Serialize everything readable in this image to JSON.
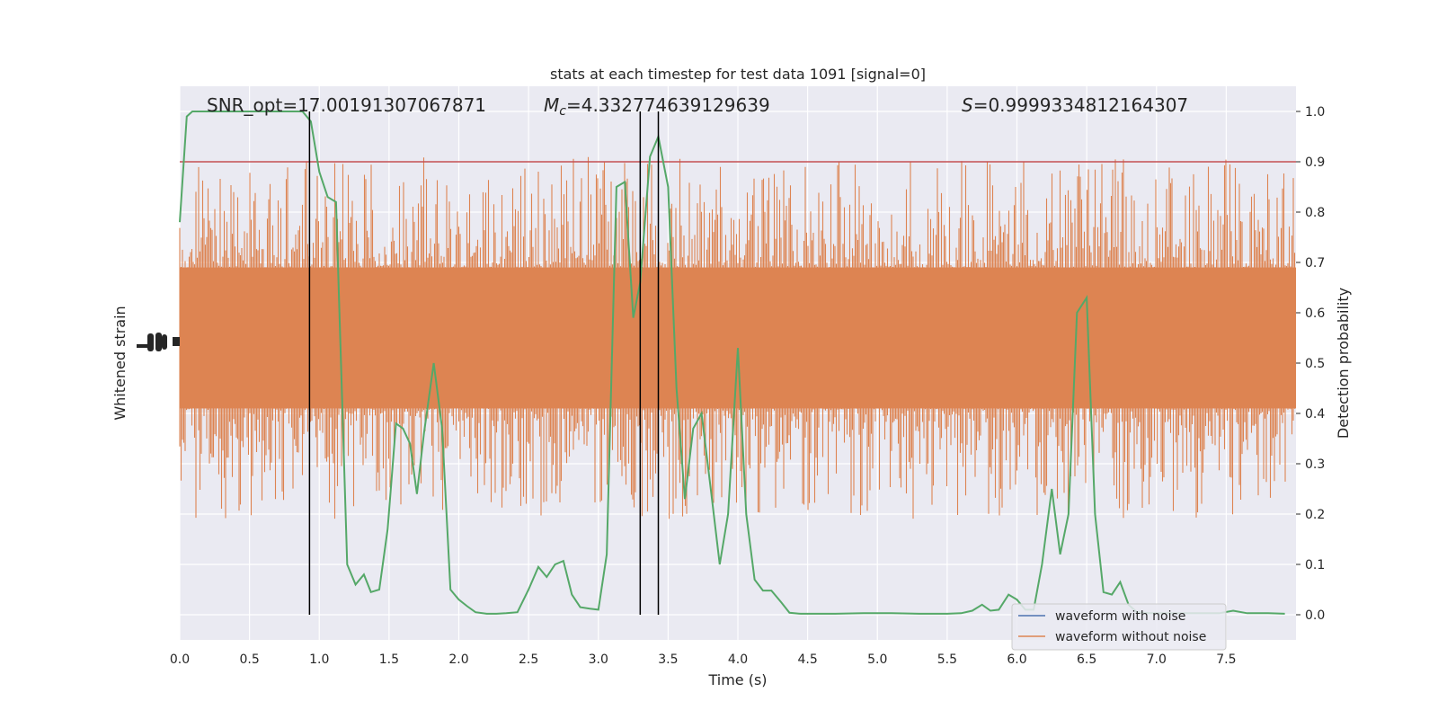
{
  "chart_data": {
    "type": "line",
    "title": "stats at each timestep for test data 1091 [signal=0]",
    "xlabel": "Time (s)",
    "ylabel_left": "Whitened strain",
    "ylabel_right": "Detection probability",
    "xlim": [
      0,
      8
    ],
    "ylim_right": [
      -0.05,
      1.05
    ],
    "x_ticks": [
      "0.0",
      "0.5",
      "1.0",
      "1.5",
      "2.0",
      "2.5",
      "3.0",
      "3.5",
      "4.0",
      "4.5",
      "5.0",
      "5.5",
      "6.0",
      "6.5",
      "7.0",
      "7.5"
    ],
    "x_tick_values": [
      0,
      0.5,
      1,
      1.5,
      2,
      2.5,
      3,
      3.5,
      4,
      4.5,
      5,
      5.5,
      6,
      6.5,
      7,
      7.5
    ],
    "y_ticks_right": [
      "0.0",
      "0.1",
      "0.2",
      "0.3",
      "0.4",
      "0.5",
      "0.6",
      "0.7",
      "0.8",
      "0.9",
      "1.0"
    ],
    "y_tick_values_right": [
      0,
      0.1,
      0.2,
      0.3,
      0.4,
      0.5,
      0.6,
      0.7,
      0.8,
      0.9,
      1.0
    ],
    "grid": true,
    "legend_position": "lower-right",
    "annotations": {
      "snr_text": "SNR_opt=17.00191307067871",
      "mc_symbol": "M",
      "mc_sub": "c",
      "mc_value": "=4.332774639129639",
      "s_symbol": "S",
      "s_value": "=0.9999334812164307"
    },
    "series": [
      {
        "name": "waveform with noise",
        "color": "#4c72b0"
      },
      {
        "name": "waveform without noise",
        "color": "#dd8452"
      },
      {
        "color": "#55a868",
        "x": [
          0.0,
          0.05,
          0.09,
          0.16,
          0.24,
          0.32,
          0.4,
          0.48,
          0.56,
          0.64,
          0.72,
          0.8,
          0.88,
          0.94,
          1.0,
          1.06,
          1.12,
          1.2,
          1.26,
          1.32,
          1.37,
          1.43,
          1.49,
          1.55,
          1.6,
          1.65,
          1.7,
          1.75,
          1.82,
          1.88,
          1.94,
          2.0,
          2.06,
          2.12,
          2.2,
          2.27,
          2.34,
          2.42,
          2.5,
          2.57,
          2.63,
          2.69,
          2.75,
          2.81,
          2.87,
          2.94,
          3.0,
          3.06,
          3.13,
          3.19,
          3.25,
          3.3,
          3.37,
          3.43,
          3.5,
          3.56,
          3.62,
          3.68,
          3.74,
          3.81,
          3.87,
          3.93,
          4.0,
          4.06,
          4.12,
          4.18,
          4.24,
          4.31,
          4.37,
          4.45,
          4.55,
          4.7,
          4.9,
          5.1,
          5.3,
          5.5,
          5.6,
          5.68,
          5.75,
          5.81,
          5.87,
          5.94,
          6.0,
          6.06,
          6.12,
          6.18,
          6.25,
          6.31,
          6.37,
          6.43,
          6.5,
          6.56,
          6.62,
          6.68,
          6.74,
          6.8,
          6.86,
          6.95,
          7.1,
          7.3,
          7.45,
          7.55,
          7.65,
          7.8,
          7.92
        ],
        "y": [
          0.78,
          0.99,
          1.0,
          1.0,
          1.0,
          1.0,
          1.0,
          1.0,
          1.0,
          1.0,
          1.0,
          1.0,
          1.0,
          0.98,
          0.88,
          0.83,
          0.82,
          0.1,
          0.06,
          0.08,
          0.045,
          0.05,
          0.17,
          0.38,
          0.37,
          0.34,
          0.24,
          0.36,
          0.5,
          0.37,
          0.05,
          0.03,
          0.017,
          0.005,
          0.002,
          0.002,
          0.003,
          0.005,
          0.05,
          0.095,
          0.075,
          0.1,
          0.107,
          0.04,
          0.015,
          0.012,
          0.01,
          0.12,
          0.85,
          0.86,
          0.59,
          0.66,
          0.91,
          0.95,
          0.85,
          0.45,
          0.23,
          0.37,
          0.4,
          0.24,
          0.1,
          0.2,
          0.53,
          0.2,
          0.07,
          0.048,
          0.048,
          0.025,
          0.004,
          0.002,
          0.002,
          0.002,
          0.003,
          0.003,
          0.002,
          0.002,
          0.003,
          0.008,
          0.02,
          0.008,
          0.01,
          0.04,
          0.03,
          0.01,
          0.01,
          0.1,
          0.25,
          0.12,
          0.2,
          0.6,
          0.63,
          0.2,
          0.045,
          0.04,
          0.065,
          0.02,
          0.005,
          0.003,
          0.003,
          0.003,
          0.003,
          0.008,
          0.003,
          0.003,
          0.002
        ]
      }
    ],
    "threshold": {
      "value": 0.9,
      "color": "#c44e52"
    },
    "vertical_lines_x": [
      0.93,
      3.3,
      3.43
    ]
  }
}
